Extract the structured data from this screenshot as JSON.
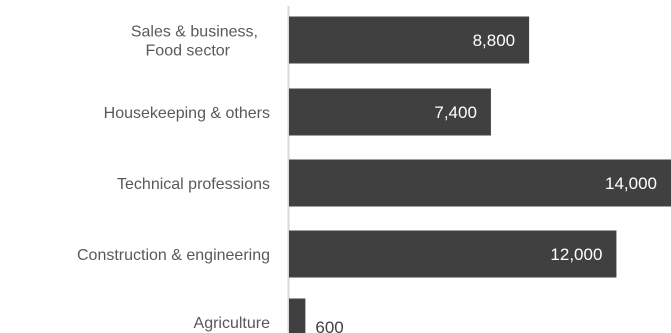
{
  "chart_data": {
    "type": "bar",
    "orientation": "horizontal",
    "categories": [
      [
        "Sales & business,",
        "Food sector"
      ],
      [
        "Housekeeping & others"
      ],
      [
        "Technical professions"
      ],
      [
        "Construction & engineering"
      ],
      [
        "Agriculture"
      ]
    ],
    "values": [
      8800,
      7400,
      14000,
      12000,
      600
    ],
    "value_labels": [
      "8,800",
      "7,400",
      "14,000",
      "12,000",
      "600"
    ],
    "xlim": [
      0,
      14000
    ],
    "bar_color": "#404040",
    "axis_color": "#d9d9d9",
    "inside_label_color": "#ffffff",
    "outside_label_color": "#404040",
    "grid": false,
    "legend": "none"
  }
}
